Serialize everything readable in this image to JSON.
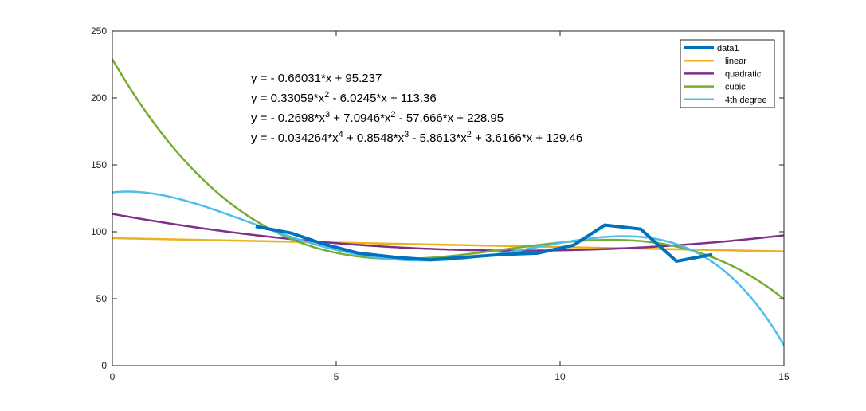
{
  "chart_data": {
    "type": "line",
    "title": "",
    "xlabel": "",
    "ylabel": "",
    "xlim": [
      0,
      15
    ],
    "ylim": [
      0,
      250
    ],
    "xticks": [
      0,
      5,
      10,
      15
    ],
    "yticks": [
      0,
      50,
      100,
      150,
      200,
      250
    ],
    "xtick_labels": [
      "0",
      "5",
      "10",
      "15"
    ],
    "ytick_labels": [
      "0",
      "50",
      "100",
      "150",
      "200",
      "250"
    ],
    "grid": false,
    "legend_position": "top-right",
    "series": [
      {
        "name": "data1",
        "color": "#0072BD",
        "line_width": "thick",
        "kind": "data",
        "x": [
          3.2,
          4.0,
          4.7,
          5.5,
          6.3,
          7.1,
          7.9,
          8.7,
          9.5,
          10.3,
          11.0,
          11.8,
          12.6,
          13.4
        ],
        "y": [
          104,
          99,
          91,
          84,
          81,
          79,
          81,
          83,
          84,
          90,
          105,
          102,
          78,
          83
        ]
      },
      {
        "name": "linear",
        "color": "#EDB120",
        "kind": "poly",
        "coefficients": [
          -0.66031,
          95.237
        ]
      },
      {
        "name": "quadratic",
        "color": "#7E2F8E",
        "kind": "poly",
        "coefficients": [
          0.33059,
          -6.0245,
          113.36
        ]
      },
      {
        "name": "cubic",
        "color": "#77AC30",
        "kind": "poly",
        "coefficients": [
          -0.2698,
          7.0946,
          -57.666,
          228.95
        ]
      },
      {
        "name": "4th degree",
        "color": "#4DBEEE",
        "kind": "poly",
        "coefficients": [
          -0.034264,
          0.8548,
          -5.8613,
          3.6166,
          129.46
        ]
      }
    ],
    "annotations": [
      {
        "text": "y = - 0.66031*x + 95.237",
        "parts": [
          [
            "y = - 0.66031*x + 95.237",
            null
          ]
        ]
      },
      {
        "text": "y = 0.33059*x^2 - 6.0245*x + 113.36",
        "parts": [
          [
            "y = 0.33059*x",
            "2"
          ],
          [
            " - 6.0245*x + 113.36",
            null
          ]
        ]
      },
      {
        "text": "y = - 0.2698*x^3 + 7.0946*x^2 - 57.666*x + 228.95",
        "parts": [
          [
            "y = - 0.2698*x",
            "3"
          ],
          [
            " + 7.0946*x",
            "2"
          ],
          [
            " - 57.666*x + 228.95",
            null
          ]
        ]
      },
      {
        "text": "y = - 0.034264*x^4 + 0.8548*x^3 - 5.8613*x^2 + 3.6166*x + 129.46",
        "parts": [
          [
            "y = - 0.034264*x",
            "4"
          ],
          [
            " + 0.8548*x",
            "3"
          ],
          [
            " - 5.8613*x",
            "2"
          ],
          [
            " + 3.6166*x + 129.46",
            null
          ]
        ]
      }
    ]
  }
}
